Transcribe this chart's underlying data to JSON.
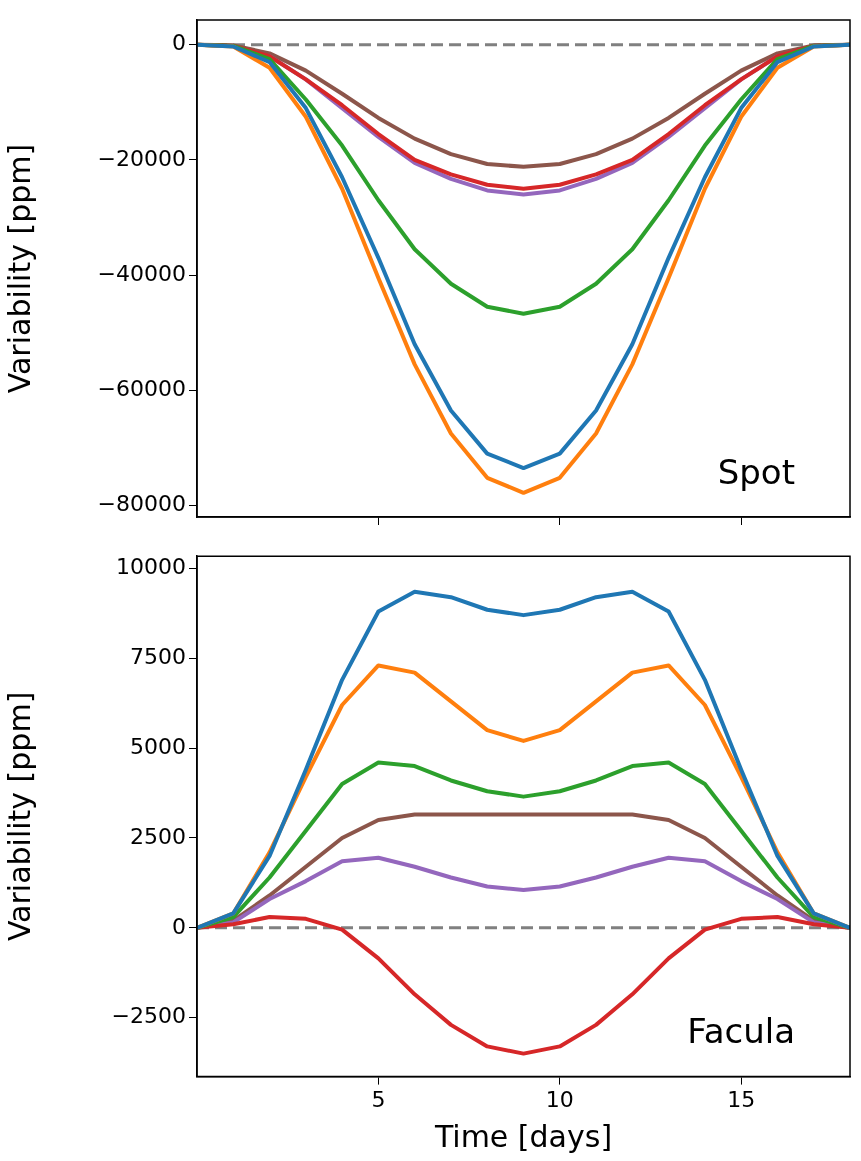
{
  "chart_data": [
    {
      "type": "line",
      "ylabel": "Variability [ppm]",
      "annotations": [
        "Spot"
      ],
      "x": [
        0,
        1,
        2,
        3,
        4,
        5,
        6,
        7,
        8,
        9,
        10,
        11,
        12,
        13,
        14,
        15,
        16,
        17,
        18
      ],
      "xlim": [
        0,
        18
      ],
      "xticks": [
        5,
        10,
        15
      ],
      "ylim": [
        -82000,
        4300
      ],
      "yticks": [
        0,
        -20000,
        -40000,
        -60000,
        -80000
      ],
      "tick_labels": "y",
      "grid": false,
      "legend": false,
      "marker": "none",
      "line_style": "solid",
      "ref_lines": [
        {
          "axis": "y",
          "value": 0,
          "color": "#808080",
          "line_style": "dashed"
        }
      ],
      "series": [
        {
          "color": "#1f77b4",
          "values": [
            0,
            -300,
            -3000,
            -11000,
            -23000,
            -37000,
            -52000,
            -63500,
            -71000,
            -73500,
            -71000,
            -63500,
            -52000,
            -37000,
            -23000,
            -11000,
            -3000,
            -300,
            0
          ]
        },
        {
          "color": "#ff7f0e",
          "values": [
            0,
            -300,
            -4000,
            -12500,
            -25000,
            -40500,
            -55500,
            -67500,
            -75200,
            -77800,
            -75200,
            -67500,
            -55500,
            -40500,
            -25000,
            -12500,
            -4000,
            -300,
            0
          ]
        },
        {
          "color": "#2ca02c",
          "values": [
            0,
            -200,
            -2500,
            -9500,
            -17500,
            -27000,
            -35500,
            -41500,
            -45500,
            -46700,
            -45500,
            -41500,
            -35500,
            -27000,
            -17500,
            -9500,
            -2500,
            -200,
            0
          ]
        },
        {
          "color": "#d62728",
          "values": [
            0,
            -200,
            -2000,
            -6000,
            -10500,
            -15500,
            -20000,
            -22500,
            -24300,
            -25000,
            -24300,
            -22500,
            -20000,
            -15500,
            -10500,
            -6000,
            -2000,
            -200,
            0
          ]
        },
        {
          "color": "#9467bd",
          "values": [
            null,
            null,
            -2000,
            -6000,
            -11000,
            -16000,
            -20500,
            -23300,
            -25300,
            -26000,
            -25300,
            -23300,
            -20500,
            -16000,
            -11000,
            -6000,
            -2000,
            null,
            null
          ]
        },
        {
          "color": "#8c564b",
          "values": [
            0,
            -100,
            -1500,
            -4500,
            -8500,
            -12700,
            -16300,
            -19000,
            -20700,
            -21200,
            -20700,
            -19000,
            -16300,
            -12700,
            -8500,
            -4500,
            -1500,
            -100,
            0
          ]
        }
      ]
    },
    {
      "type": "line",
      "xlabel": "Time [days]",
      "ylabel": "Variability [ppm]",
      "annotations": [
        "Facula"
      ],
      "x": [
        0,
        1,
        2,
        3,
        4,
        5,
        6,
        7,
        8,
        9,
        10,
        11,
        12,
        13,
        14,
        15,
        16,
        17,
        18
      ],
      "xlim": [
        0,
        18
      ],
      "xticks": [
        5,
        10,
        15
      ],
      "ylim": [
        -4140,
        10340
      ],
      "yticks": [
        -2500,
        0,
        2500,
        5000,
        7500,
        10000
      ],
      "grid": false,
      "legend": false,
      "marker": "none",
      "line_style": "solid",
      "ref_lines": [
        {
          "axis": "y",
          "value": 0,
          "color": "#808080",
          "line_style": "dashed"
        }
      ],
      "series": [
        {
          "color": "#1f77b4",
          "values": [
            0,
            400,
            2000,
            4400,
            6900,
            8800,
            9350,
            9200,
            8850,
            8700,
            8850,
            9200,
            9350,
            8800,
            6900,
            4400,
            2000,
            400,
            0
          ]
        },
        {
          "color": "#ff7f0e",
          "values": [
            0,
            400,
            2100,
            4200,
            6200,
            7300,
            7100,
            6300,
            5500,
            5200,
            5500,
            6300,
            7100,
            7300,
            6200,
            4200,
            2100,
            400,
            0
          ]
        },
        {
          "color": "#2ca02c",
          "values": [
            0,
            300,
            1400,
            2700,
            4000,
            4600,
            4500,
            4100,
            3800,
            3650,
            3800,
            4100,
            4500,
            4600,
            4000,
            2700,
            1400,
            300,
            0
          ]
        },
        {
          "color": "#d62728",
          "values": [
            0,
            100,
            300,
            250,
            -50,
            -850,
            -1850,
            -2700,
            -3300,
            -3500,
            -3300,
            -2700,
            -1850,
            -850,
            -50,
            250,
            300,
            100,
            0
          ]
        },
        {
          "color": "#9467bd",
          "values": [
            0,
            150,
            800,
            1300,
            1850,
            1950,
            1700,
            1400,
            1150,
            1050,
            1150,
            1400,
            1700,
            1950,
            1850,
            1300,
            800,
            150,
            0
          ]
        },
        {
          "color": "#8c564b",
          "values": [
            0,
            200,
            900,
            1700,
            2500,
            3000,
            3150,
            3150,
            3150,
            3150,
            3150,
            3150,
            3150,
            3000,
            2500,
            1700,
            900,
            200,
            0
          ]
        }
      ]
    }
  ]
}
